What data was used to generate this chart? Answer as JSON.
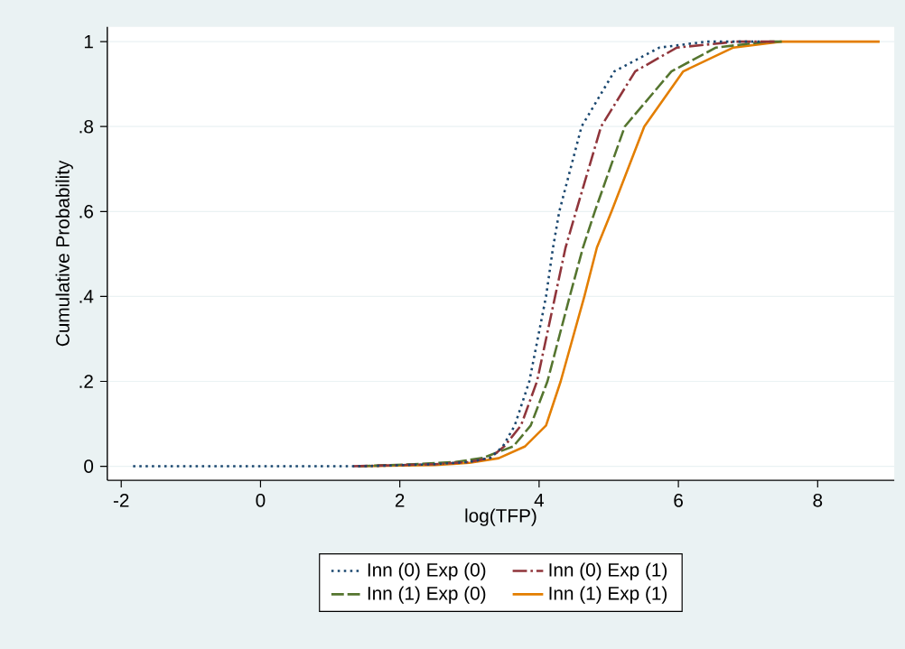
{
  "chart_data": {
    "type": "line",
    "xlabel": "log(TFP)",
    "ylabel": "Cumulative Probability",
    "xlim": [
      -2.2,
      9.1
    ],
    "ylim": [
      -0.033,
      1.035
    ],
    "xticks": [
      -2,
      0,
      2,
      4,
      6,
      8
    ],
    "yticks": [
      0,
      {
        "value": 0.2,
        "label": ".2"
      },
      {
        "value": 0.4,
        "label": ".4"
      },
      {
        "value": 0.6,
        "label": ".6"
      },
      {
        "value": 0.8,
        "label": ".8"
      },
      1
    ],
    "grid": "y",
    "legend": "bottom",
    "marker": "none",
    "series": [
      {
        "name": "Inn (0) Exp (0)",
        "color": "#1a476f",
        "line_style": "dotted",
        "x": [
          -1.83,
          1.5,
          2.5,
          3.0,
          3.3,
          3.48,
          3.65,
          3.86,
          4.1,
          4.2,
          4.29,
          4.61,
          5.08,
          5.73,
          6.4,
          7.2
        ],
        "values": [
          0,
          0,
          0.005,
          0.01,
          0.02,
          0.047,
          0.096,
          0.2,
          0.4,
          0.515,
          0.6,
          0.8,
          0.93,
          0.986,
          1,
          1
        ]
      },
      {
        "name": "Inn (0) Exp (1)",
        "color": "#90353b",
        "line_style": "dashdot",
        "x": [
          1.33,
          2.5,
          3.0,
          3.3,
          3.5,
          3.74,
          3.97,
          4.23,
          4.38,
          4.53,
          4.89,
          5.38,
          5.98,
          6.83,
          7.4
        ],
        "values": [
          0,
          0.005,
          0.01,
          0.02,
          0.047,
          0.096,
          0.2,
          0.4,
          0.515,
          0.6,
          0.8,
          0.93,
          0.986,
          1,
          1
        ]
      },
      {
        "name": "Inn (1) Exp (0)",
        "color": "#55752f",
        "line_style": "dashed",
        "x": [
          1.4,
          2.2,
          2.8,
          3.2,
          3.63,
          3.88,
          4.12,
          4.44,
          4.63,
          4.8,
          5.23,
          5.9,
          6.54,
          7.27,
          7.5
        ],
        "values": [
          0,
          0.005,
          0.01,
          0.02,
          0.047,
          0.096,
          0.2,
          0.4,
          0.515,
          0.6,
          0.8,
          0.93,
          0.986,
          1,
          1
        ]
      },
      {
        "name": "Inn (1) Exp (1)",
        "color": "#e37e00",
        "line_style": "solid",
        "x": [
          1.4,
          2.5,
          3.0,
          3.42,
          3.8,
          4.1,
          4.31,
          4.65,
          4.83,
          5.04,
          5.51,
          6.07,
          6.79,
          7.47,
          8.89
        ],
        "values": [
          0,
          0.003,
          0.008,
          0.019,
          0.047,
          0.096,
          0.2,
          0.4,
          0.515,
          0.6,
          0.8,
          0.93,
          0.986,
          1,
          1
        ]
      }
    ]
  }
}
